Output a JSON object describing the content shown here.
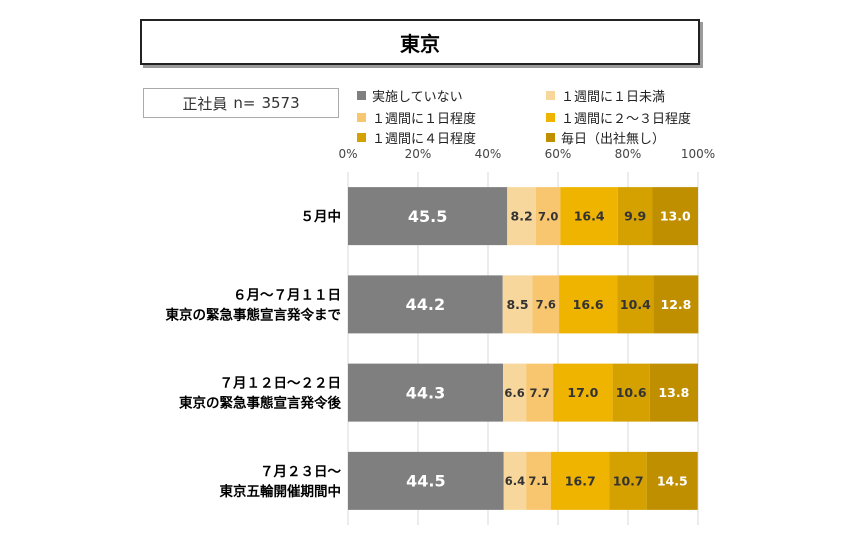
{
  "title": "東京",
  "sample": {
    "label": "正社員",
    "n_label": "n=",
    "n_value": "3573"
  },
  "chart_data": {
    "type": "bar",
    "orientation": "horizontal",
    "stacked": true,
    "xlim": [
      0,
      100
    ],
    "x_ticks": [
      "0%",
      "20%",
      "40%",
      "60%",
      "80%",
      "100%"
    ],
    "categories": [
      [
        "５月中"
      ],
      [
        "６月～７月１１日",
        "東京の緊急事態宣言発令まで"
      ],
      [
        "７月１２日～２２日",
        "東京の緊急事態宣言発令後"
      ],
      [
        "７月２３日～",
        "東京五輪開催期間中"
      ]
    ],
    "series": [
      {
        "name": "実施していない",
        "color": "#7f7f7f",
        "label_color": "#ffffff",
        "values": [
          45.5,
          44.2,
          44.3,
          44.5
        ]
      },
      {
        "name": "１週間に１日未満",
        "color": "#f8d79d",
        "label_color": "#333333",
        "values": [
          8.2,
          8.5,
          6.6,
          6.4
        ]
      },
      {
        "name": "１週間に１日程度",
        "color": "#f7c66e",
        "label_color": "#333333",
        "values": [
          7.0,
          7.6,
          7.7,
          7.1
        ]
      },
      {
        "name": "１週間に２～３日程度",
        "color": "#efb400",
        "label_color": "#333333",
        "values": [
          16.4,
          16.6,
          17.0,
          16.7
        ]
      },
      {
        "name": "１週間に４日程度",
        "color": "#d4a100",
        "label_color": "#333333",
        "values": [
          9.9,
          10.4,
          10.6,
          10.7
        ]
      },
      {
        "name": "毎日（出社無し）",
        "color": "#bf8f00",
        "label_color": "#ffffff",
        "values": [
          13.0,
          12.8,
          13.8,
          14.5
        ]
      }
    ],
    "legend_position": "top",
    "grid": "vertical"
  }
}
